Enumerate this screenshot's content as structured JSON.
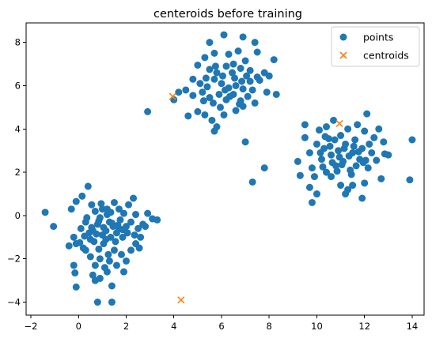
{
  "chart_data": {
    "type": "scatter",
    "title": "centeroids before training",
    "xlabel": "",
    "ylabel": "",
    "xlim": [
      -2.2,
      14.5
    ],
    "ylim": [
      -4.6,
      8.9
    ],
    "xticks": [
      -2,
      0,
      2,
      4,
      6,
      8,
      10,
      12,
      14
    ],
    "yticks": [
      -4,
      -2,
      0,
      2,
      4,
      6,
      8
    ],
    "grid": false,
    "legend_position": "top-right",
    "series": [
      {
        "name": "points",
        "marker": "circle",
        "color": "#1f77b4",
        "points": [
          [
            -1.4,
            0.15
          ],
          [
            -1.05,
            -0.5
          ],
          [
            -0.3,
            0.3
          ],
          [
            -0.1,
            0.65
          ],
          [
            0.15,
            0.9
          ],
          [
            0.4,
            1.35
          ],
          [
            0.55,
            0.5
          ],
          [
            0.7,
            0.2
          ],
          [
            -0.2,
            -1.0
          ],
          [
            -0.1,
            -1.3
          ],
          [
            0.1,
            -0.6
          ],
          [
            0.3,
            -0.3
          ],
          [
            -0.4,
            -1.4
          ],
          [
            0.2,
            -1.5
          ],
          [
            0.5,
            -1.1
          ],
          [
            0.6,
            -0.7
          ],
          [
            0.8,
            -0.4
          ],
          [
            0.9,
            -0.1
          ],
          [
            1.0,
            0.3
          ],
          [
            1.2,
            0.05
          ],
          [
            1.3,
            -0.3
          ],
          [
            1.45,
            -0.5
          ],
          [
            1.6,
            -0.8
          ],
          [
            1.75,
            -0.2
          ],
          [
            1.9,
            0.1
          ],
          [
            2.0,
            -0.5
          ],
          [
            2.1,
            0.5
          ],
          [
            2.2,
            -0.3
          ],
          [
            2.3,
            0.8
          ],
          [
            2.5,
            -0.6
          ],
          [
            2.7,
            -0.4
          ],
          [
            2.9,
            0.1
          ],
          [
            3.1,
            -0.15
          ],
          [
            3.3,
            -0.2
          ],
          [
            2.6,
            -1.0
          ],
          [
            2.4,
            -1.3
          ],
          [
            2.2,
            -1.6
          ],
          [
            2.0,
            -2.1
          ],
          [
            1.8,
            -1.8
          ],
          [
            1.5,
            -1.6
          ],
          [
            1.3,
            -2.1
          ],
          [
            1.1,
            -2.4
          ],
          [
            0.9,
            -2.0
          ],
          [
            0.7,
            -2.3
          ],
          [
            0.5,
            -1.9
          ],
          [
            0.3,
            -1.6
          ],
          [
            -0.2,
            -2.3
          ],
          [
            -0.15,
            -2.65
          ],
          [
            -0.1,
            -3.3
          ],
          [
            0.6,
            -2.75
          ],
          [
            0.7,
            -3.0
          ],
          [
            0.9,
            -2.9
          ],
          [
            1.2,
            -2.6
          ],
          [
            1.4,
            -3.25
          ],
          [
            0.8,
            -4.0
          ],
          [
            1.4,
            -4.0
          ],
          [
            1.0,
            -0.9
          ],
          [
            1.15,
            -0.7
          ],
          [
            1.35,
            -1.0
          ],
          [
            1.55,
            -1.2
          ],
          [
            1.7,
            -0.6
          ],
          [
            1.85,
            -1.0
          ],
          [
            1.05,
            -1.3
          ],
          [
            0.85,
            -1.55
          ],
          [
            0.65,
            -1.2
          ],
          [
            0.45,
            -0.8
          ],
          [
            0.25,
            -0.95
          ],
          [
            0.05,
            -1.25
          ],
          [
            1.25,
            -1.8
          ],
          [
            1.6,
            -2.3
          ],
          [
            1.9,
            -2.6
          ],
          [
            2.35,
            -0.9
          ],
          [
            2.55,
            -1.5
          ],
          [
            0.95,
            0.55
          ],
          [
            1.5,
            0.6
          ],
          [
            1.7,
            0.3
          ],
          [
            0.35,
            -0.1
          ],
          [
            1.05,
            -0.55
          ],
          [
            1.4,
            -0.35
          ],
          [
            1.65,
            -0.45
          ],
          [
            1.85,
            -0.65
          ],
          [
            2.05,
            -0.8
          ],
          [
            0.75,
            -0.85
          ],
          [
            0.55,
            -0.55
          ],
          [
            1.15,
            -1.1
          ],
          [
            2.4,
            0.05
          ],
          [
            2.8,
            -0.5
          ],
          [
            1.2,
            0.3
          ],
          [
            1.35,
            0.15
          ],
          [
            0.85,
            -0.25
          ],
          [
            5.5,
            8.0
          ],
          [
            6.1,
            8.35
          ],
          [
            6.9,
            8.25
          ],
          [
            7.4,
            8.0
          ],
          [
            5.3,
            7.3
          ],
          [
            5.7,
            7.5
          ],
          [
            6.3,
            7.45
          ],
          [
            6.7,
            7.6
          ],
          [
            7.0,
            7.15
          ],
          [
            7.5,
            7.55
          ],
          [
            8.2,
            7.2
          ],
          [
            5.0,
            6.95
          ],
          [
            5.5,
            6.75
          ],
          [
            5.8,
            6.6
          ],
          [
            6.2,
            6.9
          ],
          [
            6.5,
            7.0
          ],
          [
            6.8,
            6.8
          ],
          [
            7.2,
            6.7
          ],
          [
            7.5,
            6.4
          ],
          [
            7.8,
            6.6
          ],
          [
            8.0,
            6.45
          ],
          [
            4.8,
            6.3
          ],
          [
            5.1,
            6.1
          ],
          [
            5.4,
            5.95
          ],
          [
            5.7,
            6.3
          ],
          [
            6.0,
            6.1
          ],
          [
            6.3,
            5.9
          ],
          [
            6.6,
            6.0
          ],
          [
            6.9,
            5.85
          ],
          [
            7.2,
            6.2
          ],
          [
            7.6,
            6.25
          ],
          [
            7.9,
            5.7
          ],
          [
            4.5,
            5.8
          ],
          [
            4.8,
            5.55
          ],
          [
            5.2,
            5.7
          ],
          [
            5.5,
            5.45
          ],
          [
            5.9,
            5.6
          ],
          [
            6.2,
            5.35
          ],
          [
            6.5,
            5.6
          ],
          [
            6.8,
            5.3
          ],
          [
            7.1,
            5.5
          ],
          [
            7.4,
            5.2
          ],
          [
            8.3,
            5.6
          ],
          [
            4.2,
            5.7
          ],
          [
            4.0,
            5.35
          ],
          [
            4.6,
            4.6
          ],
          [
            5.0,
            4.8
          ],
          [
            5.3,
            4.65
          ],
          [
            5.6,
            4.4
          ],
          [
            5.8,
            4.1
          ],
          [
            5.7,
            3.9
          ],
          [
            6.1,
            4.65
          ],
          [
            6.6,
            4.85
          ],
          [
            6.9,
            5.05
          ],
          [
            7.0,
            3.4
          ],
          [
            2.9,
            4.8
          ],
          [
            5.35,
            6.35
          ],
          [
            6.05,
            6.45
          ],
          [
            6.35,
            5.5
          ],
          [
            6.45,
            6.6
          ],
          [
            5.65,
            5.2
          ],
          [
            5.95,
            5.0
          ],
          [
            6.75,
            5.15
          ],
          [
            7.3,
            5.8
          ],
          [
            5.75,
            6.9
          ],
          [
            6.55,
            6.35
          ],
          [
            7.05,
            6.45
          ],
          [
            5.25,
            5.3
          ],
          [
            6.15,
            5.8
          ],
          [
            6.85,
            6.2
          ],
          [
            9.2,
            2.5
          ],
          [
            9.5,
            3.6
          ],
          [
            9.5,
            4.2
          ],
          [
            9.7,
            2.9
          ],
          [
            9.8,
            2.2
          ],
          [
            9.9,
            1.8
          ],
          [
            10.0,
            3.3
          ],
          [
            10.1,
            3.95
          ],
          [
            10.2,
            2.6
          ],
          [
            10.3,
            3.1
          ],
          [
            10.4,
            4.1
          ],
          [
            10.5,
            3.55
          ],
          [
            10.6,
            2.8
          ],
          [
            10.7,
            4.4
          ],
          [
            10.8,
            2.3
          ],
          [
            10.9,
            3.0
          ],
          [
            11.0,
            3.7
          ],
          [
            11.1,
            2.5
          ],
          [
            11.2,
            3.3
          ],
          [
            11.3,
            4.0
          ],
          [
            11.4,
            2.1
          ],
          [
            11.5,
            2.9
          ],
          [
            11.6,
            3.5
          ],
          [
            11.7,
            4.2
          ],
          [
            11.8,
            2.6
          ],
          [
            11.9,
            3.1
          ],
          [
            12.0,
            3.9
          ],
          [
            12.1,
            4.7
          ],
          [
            12.2,
            3.3
          ],
          [
            12.3,
            2.9
          ],
          [
            12.5,
            2.55
          ],
          [
            12.6,
            4.0
          ],
          [
            12.7,
            1.7
          ],
          [
            12.8,
            3.4
          ],
          [
            12.85,
            2.85
          ],
          [
            13.0,
            2.8
          ],
          [
            13.9,
            1.65
          ],
          [
            14.0,
            3.5
          ],
          [
            9.3,
            1.85
          ],
          [
            9.7,
            1.3
          ],
          [
            10.0,
            1.0
          ],
          [
            9.8,
            0.6
          ],
          [
            10.4,
            2.0
          ],
          [
            10.6,
            1.8
          ],
          [
            11.0,
            1.4
          ],
          [
            11.2,
            1.0
          ],
          [
            11.5,
            1.4
          ],
          [
            11.3,
            1.2
          ],
          [
            11.9,
            0.8
          ],
          [
            12.0,
            1.5
          ],
          [
            10.55,
            3.2
          ],
          [
            10.75,
            3.5
          ],
          [
            10.95,
            2.7
          ],
          [
            11.15,
            3.1
          ],
          [
            11.35,
            2.75
          ],
          [
            11.55,
            3.2
          ],
          [
            11.75,
            2.95
          ],
          [
            10.25,
            2.25
          ],
          [
            10.85,
            2.05
          ],
          [
            11.45,
            1.9
          ],
          [
            12.15,
            2.2
          ],
          [
            11.95,
            2.45
          ],
          [
            10.35,
            3.65
          ],
          [
            10.65,
            2.45
          ],
          [
            11.05,
            2.35
          ],
          [
            11.65,
            2.3
          ],
          [
            12.4,
            3.6
          ],
          [
            10.15,
            2.9
          ],
          [
            12.05,
            2.55
          ],
          [
            7.3,
            1.55
          ],
          [
            7.8,
            2.2
          ]
        ]
      },
      {
        "name": "centroids",
        "marker": "x",
        "color": "#ff7f0e",
        "points": [
          [
            3.95,
            5.5
          ],
          [
            10.95,
            4.25
          ],
          [
            4.3,
            -3.9
          ]
        ]
      }
    ]
  }
}
